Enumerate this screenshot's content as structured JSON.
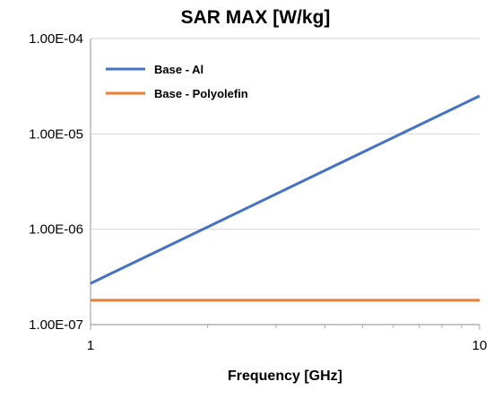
{
  "chart_data": {
    "type": "line",
    "title": "SAR MAX [W/kg]",
    "xlabel": "Frequency [GHz]",
    "ylabel": "",
    "x_scale": "log",
    "y_scale": "log",
    "xlim": [
      1,
      10
    ],
    "ylim": [
      1e-07,
      0.0001
    ],
    "x_ticks": [
      1,
      10
    ],
    "x_tick_labels": [
      "1",
      "10"
    ],
    "y_ticks": [
      0.0001,
      1e-05,
      1e-06,
      1e-07
    ],
    "y_tick_labels": [
      "1.00E-04",
      "1.00E-05",
      "1.00E-06",
      "1.00E-07"
    ],
    "grid": "horizontal",
    "legend_position": "top-left",
    "series": [
      {
        "name": "Base - Al",
        "color": "#4472C4",
        "x": [
          1,
          10
        ],
        "y": [
          2.7e-07,
          2.5e-05
        ]
      },
      {
        "name": "Base - Polyolefin",
        "color": "#ED7D31",
        "x": [
          1,
          10
        ],
        "y": [
          1.8e-07,
          1.8e-07
        ]
      }
    ]
  }
}
